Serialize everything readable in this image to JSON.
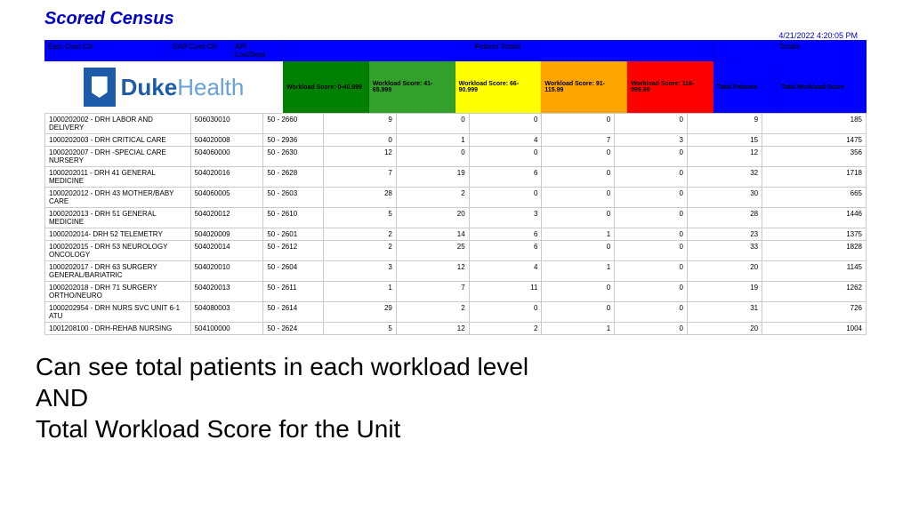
{
  "title": "Scored Census",
  "timestamp": "4/21/2022 4:20:05 PM",
  "header": {
    "epic": "Epic Cost Ctr",
    "sap": "SAP Cost Ctr",
    "api": "API Loc/Dept",
    "patient_totals": "Patient Totals",
    "totals": "Totals"
  },
  "logo": {
    "duke": "Duke",
    "health": "Health"
  },
  "score_headers": [
    {
      "label": "Workload Score: 0-40.999",
      "bg": "#008000"
    },
    {
      "label": "Workload Score: 41-65.999",
      "bg": "#33a02c"
    },
    {
      "label": "Workload Score: 66-90.999",
      "bg": "#ffff00"
    },
    {
      "label": "Workload Score: 91-115.99",
      "bg": "#ffa500"
    },
    {
      "label": "Workload Score: 116-999.99",
      "bg": "#ff0000"
    }
  ],
  "total_headers": {
    "tp": "Total Patients",
    "tws": "Total Workload Score",
    "bg": "#0000ff"
  },
  "rows": [
    {
      "epic": "1000202002 - DRH LABOR AND DELIVERY",
      "sap": "506030010",
      "api": "50 - 2660",
      "s": [
        9,
        0,
        0,
        0,
        0
      ],
      "tp": 9,
      "tws": 185
    },
    {
      "epic": "1000202003 - DRH CRITICAL CARE",
      "sap": "504020008",
      "api": "50 - 2936",
      "s": [
        0,
        1,
        4,
        7,
        3
      ],
      "tp": 15,
      "tws": 1475
    },
    {
      "epic": "1000202007 - DRH -SPECIAL CARE NURSERY",
      "sap": "504060000",
      "api": "50 - 2630",
      "s": [
        12,
        0,
        0,
        0,
        0
      ],
      "tp": 12,
      "tws": 356
    },
    {
      "epic": "1000202011 - DRH 41 GENERAL MEDICINE",
      "sap": "504020016",
      "api": "50 - 2628",
      "s": [
        7,
        19,
        6,
        0,
        0
      ],
      "tp": 32,
      "tws": 1718
    },
    {
      "epic": "1000202012 - DRH 43 MOTHER/BABY CARE",
      "sap": "504060005",
      "api": "50 - 2603",
      "s": [
        28,
        2,
        0,
        0,
        0
      ],
      "tp": 30,
      "tws": 665
    },
    {
      "epic": "1000202013 - DRH 51 GENERAL MEDICINE",
      "sap": "504020012",
      "api": "50 - 2610",
      "s": [
        5,
        20,
        3,
        0,
        0
      ],
      "tp": 28,
      "tws": 1446
    },
    {
      "epic": "1000202014- DRH 52 TELEMETRY",
      "sap": "504020009",
      "api": "50 - 2601",
      "s": [
        2,
        14,
        6,
        1,
        0
      ],
      "tp": 23,
      "tws": 1375
    },
    {
      "epic": "1000202015 - DRH 53 NEUROLOGY ONCOLOGY",
      "sap": "504020014",
      "api": "50 - 2612",
      "s": [
        2,
        25,
        6,
        0,
        0
      ],
      "tp": 33,
      "tws": 1828
    },
    {
      "epic": "1000202017 - DRH 63 SURGERY GENERAL/BARIATRIC",
      "sap": "504020010",
      "api": "50 - 2604",
      "s": [
        3,
        12,
        4,
        1,
        0
      ],
      "tp": 20,
      "tws": 1145
    },
    {
      "epic": "1000202018 - DRH 71 SURGERY ORTHO/NEURO",
      "sap": "504020013",
      "api": "50 - 2611",
      "s": [
        1,
        7,
        11,
        0,
        0
      ],
      "tp": 19,
      "tws": 1262
    },
    {
      "epic": "1000202954 - DRH NURS SVC UNIT 6-1 ATU",
      "sap": "504080003",
      "api": "50 - 2614",
      "s": [
        29,
        2,
        0,
        0,
        0
      ],
      "tp": 31,
      "tws": 726
    },
    {
      "epic": "1001208100 - DRH-REHAB NURSING",
      "sap": "504100000",
      "api": "50 - 2624",
      "s": [
        5,
        12,
        2,
        1,
        0
      ],
      "tp": 20,
      "tws": 1004
    }
  ],
  "caption": {
    "line1": "Can see total patients in each workload level",
    "line2": "AND",
    "line3": "Total Workload Score for the Unit"
  }
}
